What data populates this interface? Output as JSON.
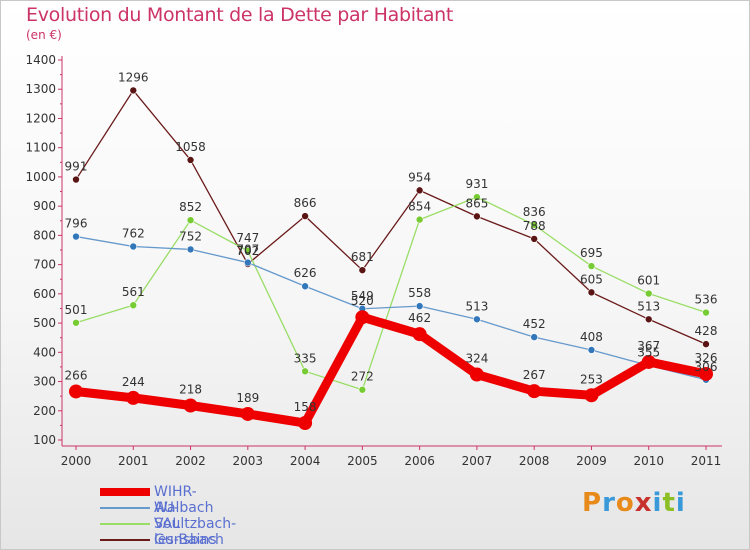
{
  "header": {
    "title": "Evolution du Montant de la Dette par Habitant",
    "subtitle": "(en €)"
  },
  "logo": {
    "letters": [
      "P",
      "r",
      "o",
      "x",
      "i",
      "t",
      "i"
    ],
    "colors": [
      "#e88a1a",
      "#3a9ad9",
      "#e88a1a",
      "#c8322d",
      "#3a9ad9",
      "#8cbf26",
      "#3a9ad9"
    ]
  },
  "chart_data": {
    "type": "line",
    "title": "Evolution du Montant de la Dette par Habitant",
    "subtitle": "(en €)",
    "x": [
      "2000",
      "2001",
      "2002",
      "2003",
      "2004",
      "2005",
      "2006",
      "2007",
      "2008",
      "2009",
      "2010",
      "2011"
    ],
    "ylim": [
      100,
      1400
    ],
    "yticks": [
      100,
      200,
      300,
      400,
      500,
      600,
      700,
      800,
      900,
      1000,
      1100,
      1200,
      1300,
      1400
    ],
    "grid": false,
    "legend_position": "bottom-left",
    "series": [
      {
        "name": "Gunsbach",
        "color": "#6b1a1a",
        "marker": "#5a1414",
        "emphasis": false,
        "values": [
          991,
          1296,
          1058,
          702,
          866,
          681,
          954,
          865,
          788,
          605,
          513,
          428
        ],
        "labels": [
          "991",
          "1296",
          "1058",
          "702",
          "866",
          "681",
          "954",
          "865",
          "788",
          "605",
          "513",
          "428"
        ]
      },
      {
        "name": "Soultzbach-les-Bains",
        "color": "#99dd66",
        "marker": "#77cc33",
        "emphasis": false,
        "values": [
          501,
          561,
          852,
          747,
          335,
          272,
          854,
          931,
          836,
          695,
          601,
          536
        ],
        "labels": [
          "501",
          "561",
          "852",
          "747",
          "335",
          "272",
          "854",
          "931",
          "836",
          "695",
          "601",
          "536"
        ]
      },
      {
        "name": "Walbach",
        "color": "#6699cc",
        "marker": "#3377bb",
        "emphasis": false,
        "values": [
          796,
          762,
          752,
          707,
          626,
          549,
          558,
          513,
          452,
          408,
          355,
          306
        ],
        "labels": [
          "796",
          "762",
          "752",
          "707",
          "626",
          "549",
          "558",
          "513",
          "452",
          "408",
          "355",
          "306"
        ]
      },
      {
        "name": "WIHR-AU-VAL",
        "color": "#ee0000",
        "marker": "#ee0000",
        "emphasis": true,
        "values": [
          266,
          244,
          218,
          189,
          158,
          520,
          462,
          324,
          267,
          253,
          367,
          326
        ],
        "labels": [
          "266",
          "244",
          "218",
          "189",
          "158",
          "520",
          "462",
          "324",
          "267",
          "253",
          "367",
          "326"
        ]
      }
    ],
    "legend": [
      "WIHR-AU-VAL",
      "Walbach",
      "Soultzbach-les-Bains",
      "Gunsbach"
    ]
  }
}
